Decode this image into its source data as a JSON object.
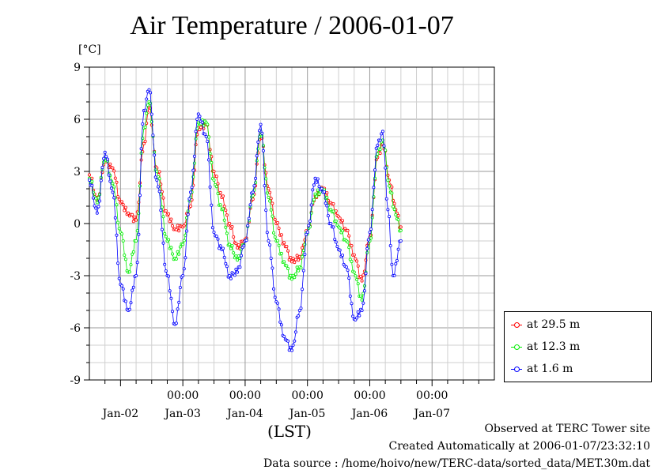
{
  "title": "Air Temperature / 2006-01-07",
  "unit_label": "[°C]",
  "footer": {
    "observed": "Observed at TERC Tower site",
    "created": "Created Automatically at 2006-01-07/23:32:10",
    "source": "Data source : /home/hoivo/new/TERC-data/sorted_data/MET.30m.dat"
  },
  "colors": {
    "red": "#ff0000",
    "green": "#00ee00",
    "blue": "#0000ff"
  },
  "chart_data": {
    "type": "line",
    "title": "Air Temperature / 2006-01-07",
    "xlabel": "(LST)",
    "ylabel": "[°C]",
    "ylim": [
      -9,
      9
    ],
    "yticks": [
      "9",
      "6",
      "3",
      "0",
      "-3",
      "-6",
      "-9"
    ],
    "xlim": [
      "2006-01-01 12:00",
      "2006-01-07 24:00"
    ],
    "x_time_ticks": [
      "00:00",
      "00:00",
      "00:00",
      "00:00",
      "00:00"
    ],
    "x_date_labels": [
      "Jan-02",
      "Jan-03",
      "Jan-04",
      "Jan-05",
      "Jan-06",
      "Jan-07"
    ],
    "grid": true,
    "legend_position": "bottom-right outside",
    "series": [
      {
        "name": "at 29.5 m",
        "color": "#ff0000",
        "points": [
          [
            "01-01 12:00",
            2.8
          ],
          [
            "01-01 15:00",
            1.3
          ],
          [
            "01-01 18:00",
            3.6
          ],
          [
            "01-01 21:00",
            3.2
          ],
          [
            "01-02 00:00",
            1.2
          ],
          [
            "01-02 03:00",
            0.6
          ],
          [
            "01-02 06:00",
            0.2
          ],
          [
            "01-02 09:00",
            4.6
          ],
          [
            "01-02 11:00",
            6.7
          ],
          [
            "01-02 14:00",
            3.2
          ],
          [
            "01-02 18:00",
            0.5
          ],
          [
            "01-02 21:00",
            -0.3
          ],
          [
            "01-03 00:00",
            -0.2
          ],
          [
            "01-03 03:00",
            1.0
          ],
          [
            "01-03 06:00",
            5.5
          ],
          [
            "01-03 09:00",
            5.7
          ],
          [
            "01-03 12:00",
            3.0
          ],
          [
            "01-03 15:00",
            1.5
          ],
          [
            "01-03 18:00",
            0.0
          ],
          [
            "01-03 21:00",
            -1.4
          ],
          [
            "01-04 00:00",
            -0.9
          ],
          [
            "01-04 03:00",
            1.4
          ],
          [
            "01-04 06:00",
            5.1
          ],
          [
            "01-04 09:00",
            2.0
          ],
          [
            "01-04 12:00",
            0.0
          ],
          [
            "01-04 15:00",
            -1.1
          ],
          [
            "01-04 18:00",
            -2.2
          ],
          [
            "01-04 21:00",
            -1.9
          ],
          [
            "01-05 00:00",
            -0.5
          ],
          [
            "01-05 03:00",
            1.6
          ],
          [
            "01-05 06:00",
            2.0
          ],
          [
            "01-05 09:00",
            1.2
          ],
          [
            "01-05 12:00",
            0.4
          ],
          [
            "01-05 15:00",
            -0.4
          ],
          [
            "01-05 18:00",
            -1.8
          ],
          [
            "01-05 21:00",
            -3.3
          ],
          [
            "01-06 00:00",
            -0.8
          ],
          [
            "01-06 03:00",
            3.8
          ],
          [
            "01-06 05:00",
            4.6
          ],
          [
            "01-06 08:00",
            2.2
          ],
          [
            "01-06 10:00",
            0.8
          ],
          [
            "01-06 12:00",
            -0.2
          ]
        ]
      },
      {
        "name": "at 12.3 m",
        "color": "#00ee00",
        "points": [
          [
            "01-01 12:00",
            2.6
          ],
          [
            "01-01 15:00",
            1.2
          ],
          [
            "01-01 18:00",
            3.8
          ],
          [
            "01-01 21:00",
            2.3
          ],
          [
            "01-02 00:00",
            -0.5
          ],
          [
            "01-02 03:00",
            -2.8
          ],
          [
            "01-02 06:00",
            -1.0
          ],
          [
            "01-02 09:00",
            5.5
          ],
          [
            "01-02 11:00",
            7.0
          ],
          [
            "01-02 14:00",
            3.0
          ],
          [
            "01-02 18:00",
            -1.0
          ],
          [
            "01-02 21:00",
            -2.0
          ],
          [
            "01-03 00:00",
            -1.2
          ],
          [
            "01-03 03:00",
            1.5
          ],
          [
            "01-03 06:00",
            5.8
          ],
          [
            "01-03 09:00",
            5.8
          ],
          [
            "01-03 12:00",
            2.5
          ],
          [
            "01-03 15:00",
            0.8
          ],
          [
            "01-03 18:00",
            -1.2
          ],
          [
            "01-03 21:00",
            -2.1
          ],
          [
            "01-04 00:00",
            -1.0
          ],
          [
            "01-04 03:00",
            1.6
          ],
          [
            "01-04 06:00",
            5.3
          ],
          [
            "01-04 09:00",
            1.5
          ],
          [
            "01-04 12:00",
            -1.0
          ],
          [
            "01-04 15:00",
            -2.2
          ],
          [
            "01-04 18:00",
            -3.2
          ],
          [
            "01-04 21:00",
            -2.5
          ],
          [
            "01-05 00:00",
            -0.6
          ],
          [
            "01-05 03:00",
            1.7
          ],
          [
            "01-05 06:00",
            1.9
          ],
          [
            "01-05 09:00",
            0.8
          ],
          [
            "01-05 12:00",
            -0.2
          ],
          [
            "01-05 15:00",
            -1.0
          ],
          [
            "01-05 18:00",
            -2.8
          ],
          [
            "01-05 21:00",
            -4.4
          ],
          [
            "01-06 00:00",
            -1.0
          ],
          [
            "01-06 03:00",
            4.0
          ],
          [
            "01-06 05:00",
            4.8
          ],
          [
            "01-06 08:00",
            1.8
          ],
          [
            "01-06 10:00",
            0.5
          ],
          [
            "01-06 12:00",
            -0.4
          ]
        ]
      },
      {
        "name": "at 1.6 m",
        "color": "#0000ff",
        "points": [
          [
            "01-01 12:00",
            2.5
          ],
          [
            "01-01 15:00",
            0.6
          ],
          [
            "01-01 18:00",
            4.1
          ],
          [
            "01-01 21:00",
            1.8
          ],
          [
            "01-02 00:00",
            -3.5
          ],
          [
            "01-02 03:00",
            -5.0
          ],
          [
            "01-02 06:00",
            -3.0
          ],
          [
            "01-02 09:00",
            6.5
          ],
          [
            "01-02 11:00",
            7.7
          ],
          [
            "01-02 14:00",
            2.5
          ],
          [
            "01-02 18:00",
            -3.0
          ],
          [
            "01-02 21:00",
            -5.8
          ],
          [
            "01-03 00:00",
            -3.0
          ],
          [
            "01-03 03:00",
            1.8
          ],
          [
            "01-03 06:00",
            6.3
          ],
          [
            "01-03 09:00",
            5.0
          ],
          [
            "01-03 12:00",
            -0.5
          ],
          [
            "01-03 15:00",
            -1.5
          ],
          [
            "01-03 18:00",
            -3.0
          ],
          [
            "01-03 21:00",
            -2.8
          ],
          [
            "01-04 00:00",
            -1.0
          ],
          [
            "01-04 03:00",
            1.8
          ],
          [
            "01-04 06:00",
            5.7
          ],
          [
            "01-04 09:00",
            -1.0
          ],
          [
            "01-04 12:00",
            -4.5
          ],
          [
            "01-04 15:00",
            -6.5
          ],
          [
            "01-04 18:00",
            -7.3
          ],
          [
            "01-04 21:00",
            -5.0
          ],
          [
            "01-05 00:00",
            -0.5
          ],
          [
            "01-05 03:00",
            2.6
          ],
          [
            "01-05 06:00",
            1.8
          ],
          [
            "01-05 09:00",
            0.0
          ],
          [
            "01-05 12:00",
            -1.5
          ],
          [
            "01-05 15:00",
            -2.5
          ],
          [
            "01-05 18:00",
            -5.5
          ],
          [
            "01-05 21:00",
            -5.0
          ],
          [
            "01-06 00:00",
            -0.5
          ],
          [
            "01-06 03:00",
            4.5
          ],
          [
            "01-06 05:00",
            5.3
          ],
          [
            "01-06 07:00",
            0.8
          ],
          [
            "01-06 09:00",
            -3.0
          ],
          [
            "01-06 12:00",
            -1.0
          ]
        ]
      }
    ]
  }
}
